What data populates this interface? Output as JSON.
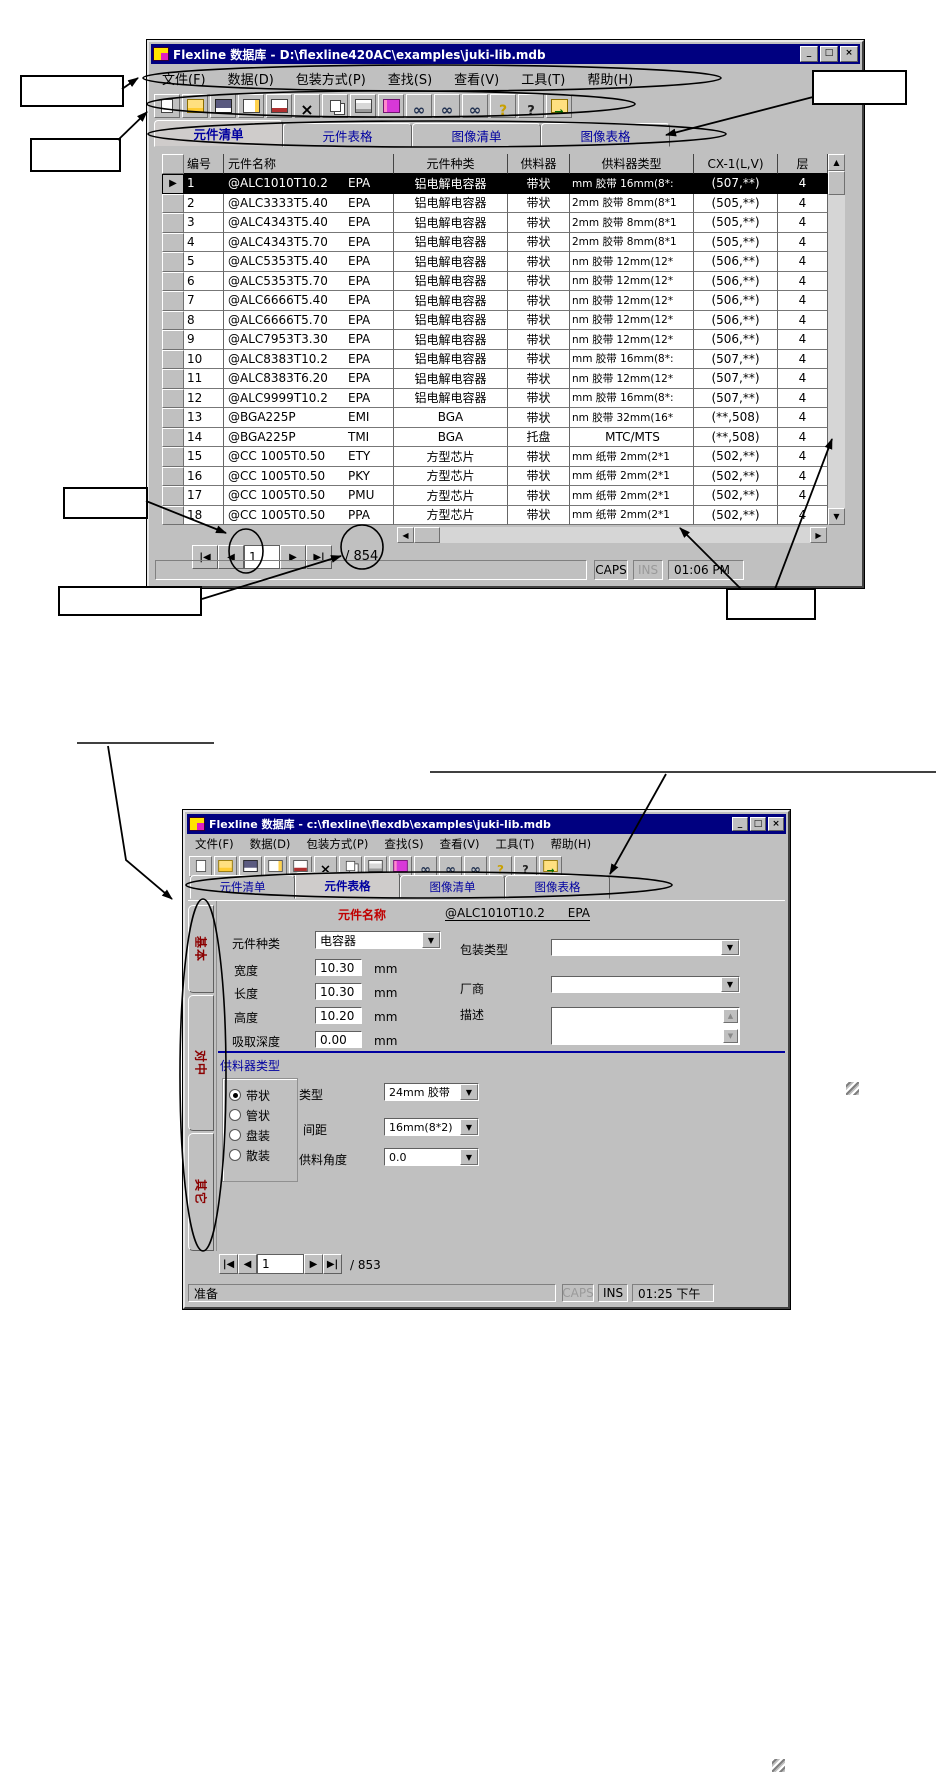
{
  "colors": {
    "titlebar": "#000080",
    "window_bg": "#c0c0c0",
    "accent_red": "#c00000",
    "accent_blue": "#0000a0",
    "selection_bg": "#000000",
    "selection_text": "#ffffff"
  },
  "window1": {
    "title": "Flexline 数据库 - D:\\flexline420AC\\examples\\juki-lib.mdb",
    "menu": [
      "文件(F)",
      "数据(D)",
      "包装方式(P)",
      "查找(S)",
      "查看(V)",
      "工具(T)",
      "帮助(H)"
    ],
    "toolbar": [
      "new",
      "open",
      "save",
      "import",
      "edit",
      "delete",
      "copy",
      "print",
      "photo",
      "find",
      "find-next",
      "find-prev",
      "help",
      "context-help",
      "exit"
    ],
    "tabs": [
      {
        "label": "元件清单",
        "active": true
      },
      {
        "label": "元件表格",
        "active": false
      },
      {
        "label": "图像清单",
        "active": false
      },
      {
        "label": "图像表格",
        "active": false
      }
    ],
    "table": {
      "columns": [
        "编号",
        "元件名称",
        "元件种类",
        "供料器",
        "供料器类型",
        "CX-1(L,V)",
        "层"
      ],
      "rows": [
        {
          "id": "1",
          "name": "@ALC1010T10.2",
          "code": "EPA",
          "kind": "铝电解电容器",
          "feeder": "带状",
          "feeder_type": "mm 胶带 16mm(8*:",
          "cx": "(507,**)",
          "layer": "4",
          "selected": true,
          "ft_center": false
        },
        {
          "id": "2",
          "name": "@ALC3333T5.40",
          "code": "EPA",
          "kind": "铝电解电容器",
          "feeder": "带状",
          "feeder_type": "2mm 胶带 8mm(8*1",
          "cx": "(505,**)",
          "layer": "4",
          "selected": false,
          "ft_center": false
        },
        {
          "id": "3",
          "name": "@ALC4343T5.40",
          "code": "EPA",
          "kind": "铝电解电容器",
          "feeder": "带状",
          "feeder_type": "2mm 胶带 8mm(8*1",
          "cx": "(505,**)",
          "layer": "4",
          "selected": false,
          "ft_center": false
        },
        {
          "id": "4",
          "name": "@ALC4343T5.70",
          "code": "EPA",
          "kind": "铝电解电容器",
          "feeder": "带状",
          "feeder_type": "2mm 胶带 8mm(8*1",
          "cx": "(505,**)",
          "layer": "4",
          "selected": false,
          "ft_center": false
        },
        {
          "id": "5",
          "name": "@ALC5353T5.40",
          "code": "EPA",
          "kind": "铝电解电容器",
          "feeder": "带状",
          "feeder_type": "nm 胶带 12mm(12*",
          "cx": "(506,**)",
          "layer": "4",
          "selected": false,
          "ft_center": false
        },
        {
          "id": "6",
          "name": "@ALC5353T5.70",
          "code": "EPA",
          "kind": "铝电解电容器",
          "feeder": "带状",
          "feeder_type": "nm 胶带 12mm(12*",
          "cx": "(506,**)",
          "layer": "4",
          "selected": false,
          "ft_center": false
        },
        {
          "id": "7",
          "name": "@ALC6666T5.40",
          "code": "EPA",
          "kind": "铝电解电容器",
          "feeder": "带状",
          "feeder_type": "nm 胶带 12mm(12*",
          "cx": "(506,**)",
          "layer": "4",
          "selected": false,
          "ft_center": false
        },
        {
          "id": "8",
          "name": "@ALC6666T5.70",
          "code": "EPA",
          "kind": "铝电解电容器",
          "feeder": "带状",
          "feeder_type": "nm 胶带 12mm(12*",
          "cx": "(506,**)",
          "layer": "4",
          "selected": false,
          "ft_center": false
        },
        {
          "id": "9",
          "name": "@ALC7953T3.30",
          "code": "EPA",
          "kind": "铝电解电容器",
          "feeder": "带状",
          "feeder_type": "nm 胶带 12mm(12*",
          "cx": "(506,**)",
          "layer": "4",
          "selected": false,
          "ft_center": false
        },
        {
          "id": "10",
          "name": "@ALC8383T10.2",
          "code": "EPA",
          "kind": "铝电解电容器",
          "feeder": "带状",
          "feeder_type": "mm 胶带 16mm(8*:",
          "cx": "(507,**)",
          "layer": "4",
          "selected": false,
          "ft_center": false
        },
        {
          "id": "11",
          "name": "@ALC8383T6.20",
          "code": "EPA",
          "kind": "铝电解电容器",
          "feeder": "带状",
          "feeder_type": "nm 胶带 12mm(12*",
          "cx": "(507,**)",
          "layer": "4",
          "selected": false,
          "ft_center": false
        },
        {
          "id": "12",
          "name": "@ALC9999T10.2",
          "code": "EPA",
          "kind": "铝电解电容器",
          "feeder": "带状",
          "feeder_type": "mm 胶带 16mm(8*:",
          "cx": "(507,**)",
          "layer": "4",
          "selected": false,
          "ft_center": false
        },
        {
          "id": "13",
          "name": "@BGA225P",
          "code": "EMI",
          "kind": "BGA",
          "feeder": "带状",
          "feeder_type": "nm 胶带 32mm(16*",
          "cx": "(**,508)",
          "layer": "4",
          "selected": false,
          "ft_center": false
        },
        {
          "id": "14",
          "name": "@BGA225P",
          "code": "TMI",
          "kind": "BGA",
          "feeder": "托盘",
          "feeder_type": "MTC/MTS",
          "cx": "(**,508)",
          "layer": "4",
          "selected": false,
          "ft_center": true
        },
        {
          "id": "15",
          "name": "@CC 1005T0.50",
          "code": "ETY",
          "kind": "方型芯片",
          "feeder": "带状",
          "feeder_type": "mm 纸带 2mm(2*1",
          "cx": "(502,**)",
          "layer": "4",
          "selected": false,
          "ft_center": false
        },
        {
          "id": "16",
          "name": "@CC 1005T0.50",
          "code": "PKY",
          "kind": "方型芯片",
          "feeder": "带状",
          "feeder_type": "mm 纸带 2mm(2*1",
          "cx": "(502,**)",
          "layer": "4",
          "selected": false,
          "ft_center": false
        },
        {
          "id": "17",
          "name": "@CC 1005T0.50",
          "code": "PMU",
          "kind": "方型芯片",
          "feeder": "带状",
          "feeder_type": "mm 纸带 2mm(2*1",
          "cx": "(502,**)",
          "layer": "4",
          "selected": false,
          "ft_center": false
        },
        {
          "id": "18",
          "name": "@CC 1005T0.50",
          "code": "PPA",
          "kind": "方型芯片",
          "feeder": "带状",
          "feeder_type": "mm 纸带 2mm(2*1",
          "cx": "(502,**)",
          "layer": "4",
          "selected": false,
          "ft_center": false
        }
      ]
    },
    "record_nav": {
      "current": "1",
      "total": "/ 854"
    },
    "status": {
      "caps": "CAPS",
      "ins": "INS",
      "time": "01:06 PM"
    }
  },
  "window2": {
    "title": "Flexline 数据库 - c:\\flexline\\flexdb\\examples\\juki-lib.mdb",
    "menu": [
      "文件(F)",
      "数据(D)",
      "包装方式(P)",
      "查找(S)",
      "查看(V)",
      "工具(T)",
      "帮助(H)"
    ],
    "toolbar": [
      "new",
      "open",
      "save",
      "import",
      "edit",
      "delete",
      "copy",
      "print",
      "photo",
      "find",
      "find-next",
      "find-prev",
      "help",
      "context-help",
      "exit"
    ],
    "tabs": [
      {
        "label": "元件清单",
        "active": false
      },
      {
        "label": "元件表格",
        "active": true
      },
      {
        "label": "图像清单",
        "active": false
      },
      {
        "label": "图像表格",
        "active": false
      }
    ],
    "side_tabs": [
      "基本",
      "对中",
      "其它"
    ],
    "form": {
      "part_name_label": "元件名称",
      "part_name_value": "@ALC1010T10.2      EPA",
      "kind_label": "元件种类",
      "kind_value": "电容器",
      "package_label": "包装类型",
      "width_label": "宽度",
      "width_value": "10.30",
      "vendor_label": "厂商",
      "length_label": "长度",
      "length_value": "10.30",
      "desc_label": "描述",
      "height_label": "高度",
      "height_value": "10.20",
      "pickup_label": "吸取深度",
      "pickup_value": "0.00",
      "unit": "mm",
      "feeder_section_label": "供料器类型",
      "feeder_radios": [
        {
          "label": "带状",
          "checked": true
        },
        {
          "label": "管状",
          "checked": false
        },
        {
          "label": "盘装",
          "checked": false
        },
        {
          "label": "散装",
          "checked": false
        }
      ],
      "type_label": "类型",
      "type_value": "24mm 胶带",
      "pitch_label": "间距",
      "pitch_value": "16mm(8*2)",
      "angle_label": "供料角度",
      "angle_value": "0.0"
    },
    "record_nav": {
      "current": "1",
      "total": "/ 853"
    },
    "status": {
      "ready": "准备",
      "caps": "CAPS",
      "ins": "INS",
      "time": "01:25 下午"
    }
  }
}
